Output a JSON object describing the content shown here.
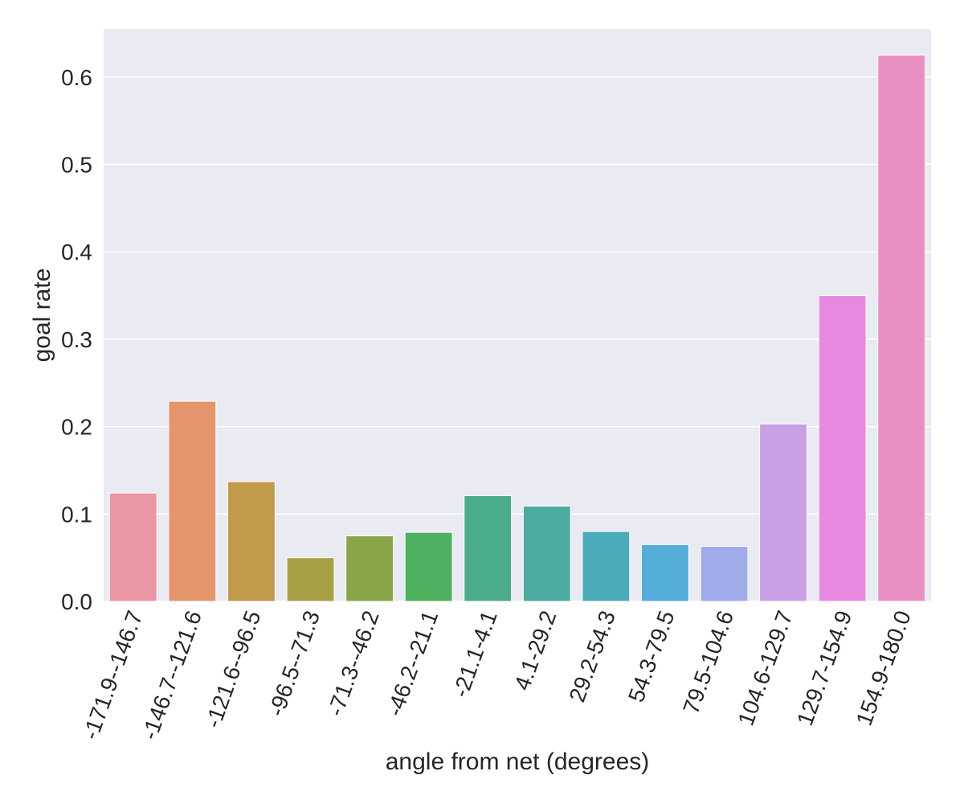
{
  "chart_data": {
    "type": "bar",
    "title": "",
    "xlabel": "angle from net (degrees)",
    "ylabel": "goal rate",
    "ylim": [
      0,
      0.655
    ],
    "yticks": [
      0.0,
      0.1,
      0.2,
      0.3,
      0.4,
      0.5,
      0.6
    ],
    "ytick_labels": [
      "0.0",
      "0.1",
      "0.2",
      "0.3",
      "0.4",
      "0.5",
      "0.6"
    ],
    "grid": true,
    "legend": "none",
    "background": "#eaeaf2",
    "categories": [
      "-171.9--146.7",
      "-146.7--121.6",
      "-121.6--96.5",
      "-96.5--71.3",
      "-71.3--46.2",
      "-46.2--21.1",
      "-21.1-4.1",
      "4.1-29.2",
      "29.2-54.3",
      "54.3-79.5",
      "79.5-104.6",
      "104.6-129.7",
      "129.7-154.9",
      "154.9-180.0"
    ],
    "values": [
      0.124,
      0.229,
      0.137,
      0.05,
      0.075,
      0.079,
      0.121,
      0.109,
      0.08,
      0.065,
      0.063,
      0.203,
      0.35,
      0.625
    ],
    "colors": [
      "#ea96a3",
      "#e4956c",
      "#c29a4b",
      "#a7a045",
      "#89a545",
      "#4db160",
      "#4bac8b",
      "#4bab9f",
      "#4cabb9",
      "#54acd8",
      "#a1abea",
      "#c99fe6",
      "#e889e0",
      "#e98fc2"
    ]
  }
}
